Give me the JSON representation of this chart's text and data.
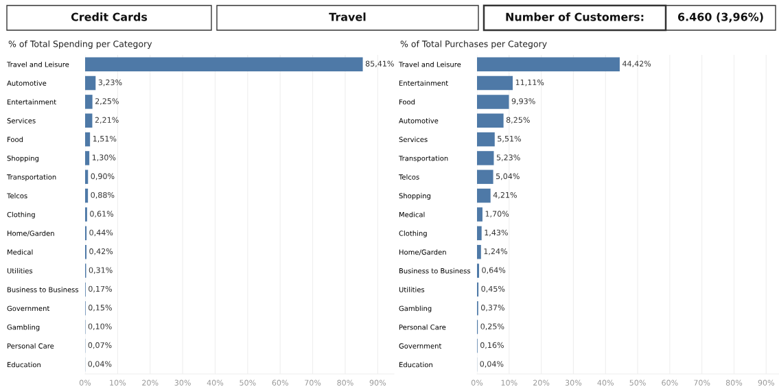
{
  "chart_data": [
    {
      "type": "other",
      "annotations": [
        "Credit Cards",
        "Travel",
        "Number of Customers:",
        "6.460 (3,96%)"
      ]
    },
    {
      "type": "bar",
      "orientation": "horizontal",
      "title": "% of Total Spending per Category",
      "color": "#4e79a7",
      "grid": "x",
      "categories": [
        "Travel and Leisure",
        "Automotive",
        "Entertainment",
        "Services",
        "Food",
        "Shopping",
        "Transportation",
        "Telcos",
        "Clothing",
        "Home/Garden",
        "Medical",
        "Utilities",
        "Business to Business",
        "Government",
        "Gambling",
        "Personal Care",
        "Education"
      ],
      "values": [
        85.41,
        3.23,
        2.25,
        2.21,
        1.51,
        1.3,
        0.9,
        0.88,
        0.61,
        0.44,
        0.42,
        0.31,
        0.17,
        0.15,
        0.1,
        0.07,
        0.04
      ],
      "value_labels": [
        "85,41%",
        "3,23%",
        "2,25%",
        "2,21%",
        "1,51%",
        "1,30%",
        "0,90%",
        "0,88%",
        "0,61%",
        "0,44%",
        "0,42%",
        "0,31%",
        "0,17%",
        "0,15%",
        "0,10%",
        "0,07%",
        "0,04%"
      ],
      "xlim": [
        0,
        95
      ],
      "xticks": [
        {
          "value": 0,
          "label": "0%"
        },
        {
          "value": 10,
          "label": "10%"
        },
        {
          "value": 20,
          "label": "20%"
        },
        {
          "value": 30,
          "label": "30%"
        },
        {
          "value": 40,
          "label": "40%"
        },
        {
          "value": 50,
          "label": "50%"
        },
        {
          "value": 60,
          "label": "60%"
        },
        {
          "value": 70,
          "label": "70%"
        },
        {
          "value": 80,
          "label": "80%"
        },
        {
          "value": 90,
          "label": "90%"
        }
      ]
    },
    {
      "type": "bar",
      "orientation": "horizontal",
      "title": "% of Total Purchases per Category",
      "color": "#4e79a7",
      "grid": "x",
      "categories": [
        "Travel and Leisure",
        "Entertainment",
        "Food",
        "Automotive",
        "Services",
        "Transportation",
        "Telcos",
        "Shopping",
        "Medical",
        "Clothing",
        "Home/Garden",
        "Business to Business",
        "Utilities",
        "Gambling",
        "Personal Care",
        "Government",
        "Education"
      ],
      "values": [
        44.42,
        11.11,
        9.93,
        8.25,
        5.51,
        5.23,
        5.04,
        4.21,
        1.7,
        1.43,
        1.24,
        0.64,
        0.45,
        0.37,
        0.25,
        0.16,
        0.04
      ],
      "value_labels": [
        "44,42%",
        "11,11%",
        "9,93%",
        "8,25%",
        "5,51%",
        "5,23%",
        "5,04%",
        "4,21%",
        "1,70%",
        "1,43%",
        "1,24%",
        "0,64%",
        "0,45%",
        "0,37%",
        "0,25%",
        "0,16%",
        "0,04%"
      ],
      "xlim": [
        0,
        94
      ],
      "xticks": [
        {
          "value": 0,
          "label": "0%"
        },
        {
          "value": 10,
          "label": "10%"
        },
        {
          "value": 20,
          "label": "20%"
        },
        {
          "value": 30,
          "label": "30%"
        },
        {
          "value": 40,
          "label": "40%"
        },
        {
          "value": 50,
          "label": "50%"
        },
        {
          "value": 60,
          "label": "60%"
        },
        {
          "value": 70,
          "label": "70%"
        },
        {
          "value": 80,
          "label": "80%"
        },
        {
          "value": 90,
          "label": "90%"
        }
      ]
    }
  ]
}
